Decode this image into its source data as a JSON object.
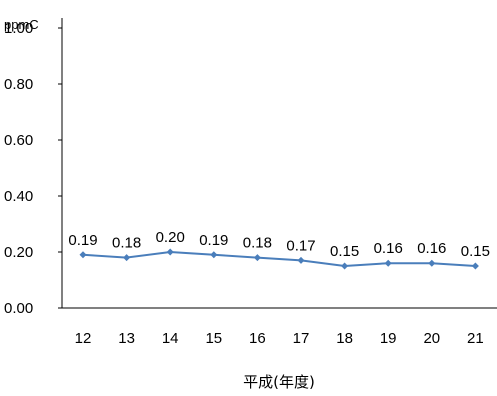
{
  "chart_data": {
    "type": "line",
    "title": "",
    "unit_label": "ppmC",
    "xlabel": "平成(年度)",
    "ylabel": "",
    "ylim": [
      0,
      1.0
    ],
    "yticks": [
      "0.00",
      "0.20",
      "0.40",
      "0.60",
      "0.80",
      "1.00"
    ],
    "categories": [
      "12",
      "13",
      "14",
      "15",
      "16",
      "17",
      "18",
      "19",
      "20",
      "21"
    ],
    "series": [
      {
        "values": [
          0.19,
          0.18,
          0.2,
          0.19,
          0.18,
          0.17,
          0.15,
          0.16,
          0.16,
          0.15
        ],
        "labels": [
          "0.19",
          "0.18",
          "0.20",
          "0.19",
          "0.18",
          "0.17",
          "0.15",
          "0.16",
          "0.16",
          "0.15"
        ],
        "color": "#4a7ebb"
      }
    ],
    "grid": false,
    "legend": "none"
  }
}
